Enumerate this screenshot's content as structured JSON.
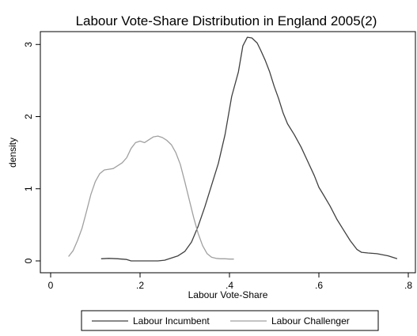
{
  "chart_data": {
    "type": "line",
    "title": "Labour Vote-Share Distribution in England 2005(2)",
    "xlabel": "Labour Vote-Share",
    "ylabel": "density",
    "xlim": [
      0,
      0.8
    ],
    "ylim": [
      0,
      3.2
    ],
    "xticks": [
      0,
      0.2,
      0.4,
      0.6,
      0.8
    ],
    "xtick_labels": [
      "0",
      ".2",
      ".4",
      ".6",
      ".8"
    ],
    "yticks": [
      0,
      1,
      2,
      3
    ],
    "ytick_labels": [
      "0",
      "1",
      "2",
      "3"
    ],
    "grid": false,
    "legend_position": "bottom",
    "series": [
      {
        "name": "Labour Incumbent",
        "color": "#404040",
        "points": [
          [
            0.113,
            0.03
          ],
          [
            0.13,
            0.035
          ],
          [
            0.15,
            0.03
          ],
          [
            0.17,
            0.02
          ],
          [
            0.18,
            0.0
          ],
          [
            0.2,
            0.0
          ],
          [
            0.22,
            0.0
          ],
          [
            0.24,
            0.0
          ],
          [
            0.255,
            0.01
          ],
          [
            0.27,
            0.04
          ],
          [
            0.285,
            0.07
          ],
          [
            0.3,
            0.13
          ],
          [
            0.315,
            0.26
          ],
          [
            0.33,
            0.48
          ],
          [
            0.345,
            0.75
          ],
          [
            0.36,
            1.05
          ],
          [
            0.375,
            1.35
          ],
          [
            0.39,
            1.75
          ],
          [
            0.405,
            2.28
          ],
          [
            0.42,
            2.62
          ],
          [
            0.43,
            2.98
          ],
          [
            0.44,
            3.1
          ],
          [
            0.45,
            3.09
          ],
          [
            0.462,
            3.02
          ],
          [
            0.47,
            2.92
          ],
          [
            0.48,
            2.78
          ],
          [
            0.49,
            2.62
          ],
          [
            0.5,
            2.42
          ],
          [
            0.51,
            2.25
          ],
          [
            0.52,
            2.05
          ],
          [
            0.53,
            1.9
          ],
          [
            0.545,
            1.75
          ],
          [
            0.56,
            1.58
          ],
          [
            0.575,
            1.38
          ],
          [
            0.59,
            1.18
          ],
          [
            0.6,
            1.02
          ],
          [
            0.61,
            0.92
          ],
          [
            0.625,
            0.76
          ],
          [
            0.64,
            0.58
          ],
          [
            0.655,
            0.43
          ],
          [
            0.67,
            0.28
          ],
          [
            0.685,
            0.16
          ],
          [
            0.695,
            0.12
          ],
          [
            0.71,
            0.11
          ],
          [
            0.73,
            0.1
          ],
          [
            0.755,
            0.07
          ],
          [
            0.775,
            0.03
          ]
        ]
      },
      {
        "name": "Labour Challenger",
        "color": "#a0a0a0",
        "points": [
          [
            0.04,
            0.06
          ],
          [
            0.05,
            0.14
          ],
          [
            0.06,
            0.28
          ],
          [
            0.07,
            0.45
          ],
          [
            0.08,
            0.68
          ],
          [
            0.09,
            0.92
          ],
          [
            0.1,
            1.1
          ],
          [
            0.11,
            1.21
          ],
          [
            0.12,
            1.26
          ],
          [
            0.13,
            1.27
          ],
          [
            0.14,
            1.28
          ],
          [
            0.15,
            1.32
          ],
          [
            0.16,
            1.36
          ],
          [
            0.17,
            1.43
          ],
          [
            0.18,
            1.56
          ],
          [
            0.19,
            1.64
          ],
          [
            0.2,
            1.66
          ],
          [
            0.21,
            1.64
          ],
          [
            0.22,
            1.68
          ],
          [
            0.23,
            1.72
          ],
          [
            0.24,
            1.73
          ],
          [
            0.25,
            1.71
          ],
          [
            0.26,
            1.67
          ],
          [
            0.27,
            1.61
          ],
          [
            0.28,
            1.5
          ],
          [
            0.29,
            1.34
          ],
          [
            0.3,
            1.1
          ],
          [
            0.31,
            0.85
          ],
          [
            0.32,
            0.6
          ],
          [
            0.33,
            0.38
          ],
          [
            0.34,
            0.21
          ],
          [
            0.35,
            0.1
          ],
          [
            0.36,
            0.05
          ],
          [
            0.37,
            0.035
          ],
          [
            0.38,
            0.03
          ],
          [
            0.39,
            0.03
          ],
          [
            0.4,
            0.025
          ],
          [
            0.41,
            0.025
          ]
        ]
      }
    ]
  }
}
